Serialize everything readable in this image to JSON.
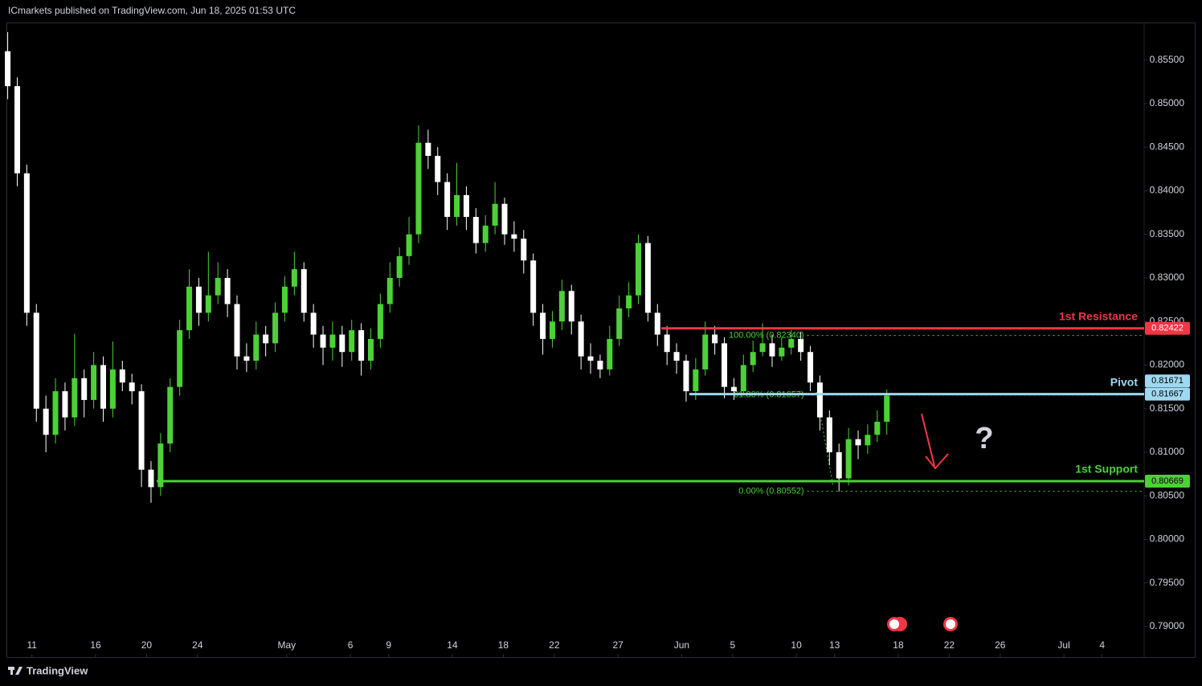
{
  "header": "ICmarkets published on TradingView.com, Jun 18, 2025 01:53 UTC",
  "footer": "TradingView",
  "chart_data": {
    "type": "candlestick",
    "up_color": "#4cd137",
    "down_color": "#ffffff",
    "xlim": [
      9,
      98.3
    ],
    "xticks": [
      {
        "value": 11,
        "label": "11"
      },
      {
        "value": 16,
        "label": "16"
      },
      {
        "value": 20,
        "label": "20"
      },
      {
        "value": 24,
        "label": "24"
      },
      {
        "value": 31,
        "label": "May"
      },
      {
        "value": 36,
        "label": "6"
      },
      {
        "value": 39,
        "label": "9"
      },
      {
        "value": 44,
        "label": "14"
      },
      {
        "value": 48,
        "label": "18"
      },
      {
        "value": 52,
        "label": "22"
      },
      {
        "value": 57,
        "label": "27"
      },
      {
        "value": 62,
        "label": "Jun"
      },
      {
        "value": 66,
        "label": "5"
      },
      {
        "value": 71,
        "label": "10"
      },
      {
        "value": 74,
        "label": "13"
      },
      {
        "value": 79,
        "label": "18"
      },
      {
        "value": 83,
        "label": "22"
      },
      {
        "value": 87,
        "label": "26"
      },
      {
        "value": 92,
        "label": "Jul"
      },
      {
        "value": 95,
        "label": "4"
      }
    ],
    "ylim": [
      0.7889,
      0.8593
    ],
    "yticks": [
      {
        "value": 0.855,
        "label": "0.85500"
      },
      {
        "value": 0.85,
        "label": "0.85000"
      },
      {
        "value": 0.845,
        "label": "0.84500"
      },
      {
        "value": 0.84,
        "label": "0.84000"
      },
      {
        "value": 0.835,
        "label": "0.83500"
      },
      {
        "value": 0.83,
        "label": "0.83000"
      },
      {
        "value": 0.825,
        "label": "0.82500"
      },
      {
        "value": 0.82,
        "label": "0.82000"
      },
      {
        "value": 0.815,
        "label": "0.81500"
      },
      {
        "value": 0.81,
        "label": "0.81000"
      },
      {
        "value": 0.805,
        "label": "0.80500"
      },
      {
        "value": 0.8,
        "label": "0.80000"
      },
      {
        "value": 0.795,
        "label": "0.79500"
      },
      {
        "value": 0.79,
        "label": "0.79000"
      }
    ],
    "candles": {
      "x": [
        9.1,
        9.85,
        10.6,
        11.35,
        12.1,
        12.85,
        13.6,
        14.35,
        15.1,
        15.85,
        16.6,
        17.35,
        18.1,
        18.85,
        19.6,
        20.35,
        21.1,
        21.85,
        22.6,
        23.35,
        24.1,
        24.85,
        25.6,
        26.35,
        27.1,
        27.85,
        28.6,
        29.35,
        30.1,
        30.85,
        31.6,
        32.35,
        33.1,
        33.85,
        34.6,
        35.35,
        36.1,
        36.85,
        37.6,
        38.35,
        39.1,
        39.85,
        40.6,
        41.35,
        42.1,
        42.85,
        43.6,
        44.35,
        45.1,
        45.85,
        46.6,
        47.35,
        48.1,
        48.85,
        49.6,
        50.35,
        51.1,
        51.85,
        52.6,
        53.35,
        54.1,
        54.85,
        55.6,
        56.35,
        57.1,
        57.85,
        58.6,
        59.35,
        60.1,
        60.85,
        61.6,
        62.35,
        63.1,
        63.85,
        64.6,
        65.35,
        66.1,
        66.85,
        67.6,
        68.35,
        69.1,
        69.85,
        70.6,
        71.35,
        72.1,
        72.85,
        73.6,
        74.35,
        75.1,
        75.85,
        76.6,
        77.35,
        78.1
      ],
      "open": [
        0.856,
        0.852,
        0.842,
        0.826,
        0.815,
        0.812,
        0.817,
        0.814,
        0.8185,
        0.816,
        0.82,
        0.815,
        0.8195,
        0.818,
        0.817,
        0.808,
        0.806,
        0.811,
        0.8175,
        0.824,
        0.829,
        0.826,
        0.828,
        0.83,
        0.827,
        0.821,
        0.8205,
        0.8235,
        0.8225,
        0.826,
        0.829,
        0.831,
        0.826,
        0.8235,
        0.822,
        0.8235,
        0.8215,
        0.824,
        0.8205,
        0.823,
        0.827,
        0.83,
        0.8325,
        0.835,
        0.8455,
        0.844,
        0.841,
        0.837,
        0.8395,
        0.837,
        0.834,
        0.836,
        0.8385,
        0.835,
        0.8345,
        0.832,
        0.826,
        0.823,
        0.825,
        0.8285,
        0.825,
        0.821,
        0.8205,
        0.8195,
        0.823,
        0.8265,
        0.828,
        0.834,
        0.826,
        0.8235,
        0.8215,
        0.8205,
        0.817,
        0.8195,
        0.8235,
        0.8225,
        0.8175,
        0.817,
        0.82,
        0.8215,
        0.8225,
        0.821,
        0.822,
        0.823,
        0.8215,
        0.818,
        0.814,
        0.81,
        0.807,
        0.8115,
        0.8108,
        0.812,
        0.8135
      ],
      "high": [
        0.8582,
        0.853,
        0.843,
        0.827,
        0.8165,
        0.8185,
        0.818,
        0.8236,
        0.8195,
        0.8215,
        0.821,
        0.8227,
        0.8205,
        0.819,
        0.8178,
        0.809,
        0.8122,
        0.8185,
        0.8252,
        0.831,
        0.83,
        0.833,
        0.8318,
        0.831,
        0.828,
        0.8225,
        0.825,
        0.8245,
        0.8272,
        0.8302,
        0.833,
        0.8318,
        0.827,
        0.8245,
        0.825,
        0.8245,
        0.8252,
        0.8248,
        0.8242,
        0.8282,
        0.8318,
        0.8335,
        0.837,
        0.8475,
        0.847,
        0.845,
        0.842,
        0.8432,
        0.8405,
        0.838,
        0.8372,
        0.841,
        0.8392,
        0.8365,
        0.8355,
        0.8328,
        0.827,
        0.8262,
        0.8298,
        0.8292,
        0.8258,
        0.8225,
        0.8212,
        0.8245,
        0.828,
        0.8295,
        0.835,
        0.8348,
        0.827,
        0.8245,
        0.8225,
        0.8212,
        0.8208,
        0.825,
        0.8245,
        0.8232,
        0.8185,
        0.8212,
        0.8228,
        0.8248,
        0.8235,
        0.8232,
        0.824,
        0.8238,
        0.8222,
        0.8188,
        0.8148,
        0.811,
        0.8128,
        0.8125,
        0.8132,
        0.8148,
        0.8172
      ],
      "low": [
        0.8505,
        0.8405,
        0.8245,
        0.8135,
        0.81,
        0.811,
        0.8125,
        0.813,
        0.814,
        0.815,
        0.8135,
        0.814,
        0.817,
        0.8155,
        0.806,
        0.8042,
        0.805,
        0.81,
        0.8165,
        0.823,
        0.8245,
        0.825,
        0.827,
        0.8255,
        0.8195,
        0.8192,
        0.8195,
        0.821,
        0.8215,
        0.825,
        0.828,
        0.825,
        0.822,
        0.82,
        0.8205,
        0.8198,
        0.8205,
        0.8188,
        0.8195,
        0.822,
        0.826,
        0.829,
        0.8315,
        0.834,
        0.8425,
        0.8395,
        0.8355,
        0.836,
        0.8355,
        0.8328,
        0.833,
        0.835,
        0.8338,
        0.833,
        0.8305,
        0.8245,
        0.8212,
        0.822,
        0.824,
        0.8235,
        0.8195,
        0.819,
        0.8185,
        0.8188,
        0.8222,
        0.8255,
        0.827,
        0.825,
        0.8222,
        0.82,
        0.819,
        0.8158,
        0.816,
        0.8188,
        0.8212,
        0.8162,
        0.816,
        0.8165,
        0.8192,
        0.821,
        0.8198,
        0.8205,
        0.8212,
        0.8205,
        0.817,
        0.8125,
        0.8085,
        0.8055,
        0.8062,
        0.8092,
        0.8098,
        0.8112,
        0.812
      ],
      "close": [
        0.852,
        0.842,
        0.826,
        0.815,
        0.812,
        0.817,
        0.814,
        0.8185,
        0.816,
        0.82,
        0.815,
        0.8195,
        0.818,
        0.817,
        0.808,
        0.806,
        0.811,
        0.8175,
        0.824,
        0.829,
        0.826,
        0.828,
        0.83,
        0.827,
        0.821,
        0.8205,
        0.8235,
        0.8225,
        0.826,
        0.829,
        0.831,
        0.826,
        0.8235,
        0.822,
        0.8235,
        0.8215,
        0.824,
        0.8205,
        0.823,
        0.827,
        0.83,
        0.8325,
        0.835,
        0.8455,
        0.844,
        0.841,
        0.837,
        0.8395,
        0.837,
        0.834,
        0.836,
        0.8385,
        0.835,
        0.8345,
        0.832,
        0.826,
        0.823,
        0.825,
        0.8285,
        0.825,
        0.821,
        0.8205,
        0.8195,
        0.823,
        0.8265,
        0.828,
        0.834,
        0.826,
        0.8235,
        0.8215,
        0.8205,
        0.817,
        0.8195,
        0.8235,
        0.8225,
        0.8175,
        0.817,
        0.82,
        0.8215,
        0.8225,
        0.821,
        0.822,
        0.823,
        0.8215,
        0.818,
        0.814,
        0.81,
        0.807,
        0.8115,
        0.8108,
        0.812,
        0.8135,
        0.8165
      ]
    },
    "levels": [
      {
        "name": "1st Resistance",
        "value": 0.82422,
        "label": "0.82422",
        "color": "#f23645",
        "text_color": "#ffffff",
        "from": 60.4
      },
      {
        "name": "Pivot",
        "value": 0.81667,
        "label": "0.81667",
        "color": "#9fd8f0",
        "text_color": "#000000",
        "from": 62.6
      },
      {
        "name": "1st Support",
        "value": 0.80669,
        "label": "0.80669",
        "color": "#4cd137",
        "text_color": "#000000",
        "from": 20.8
      }
    ],
    "last_price": {
      "value": 0.81671,
      "label": "0.81671",
      "color": "#9fd8f0"
    },
    "fib_levels": [
      {
        "label": "100.00% (0.82340)",
        "value": 0.8234,
        "from": 71.6
      },
      {
        "label": "61.80% (0.81657)",
        "value": 0.81657,
        "from": 71.6
      },
      {
        "label": "0.00% (0.80552)",
        "value": 0.80552,
        "from": 71.6
      }
    ],
    "fib_color": "#4cd137",
    "annotation": "?"
  }
}
